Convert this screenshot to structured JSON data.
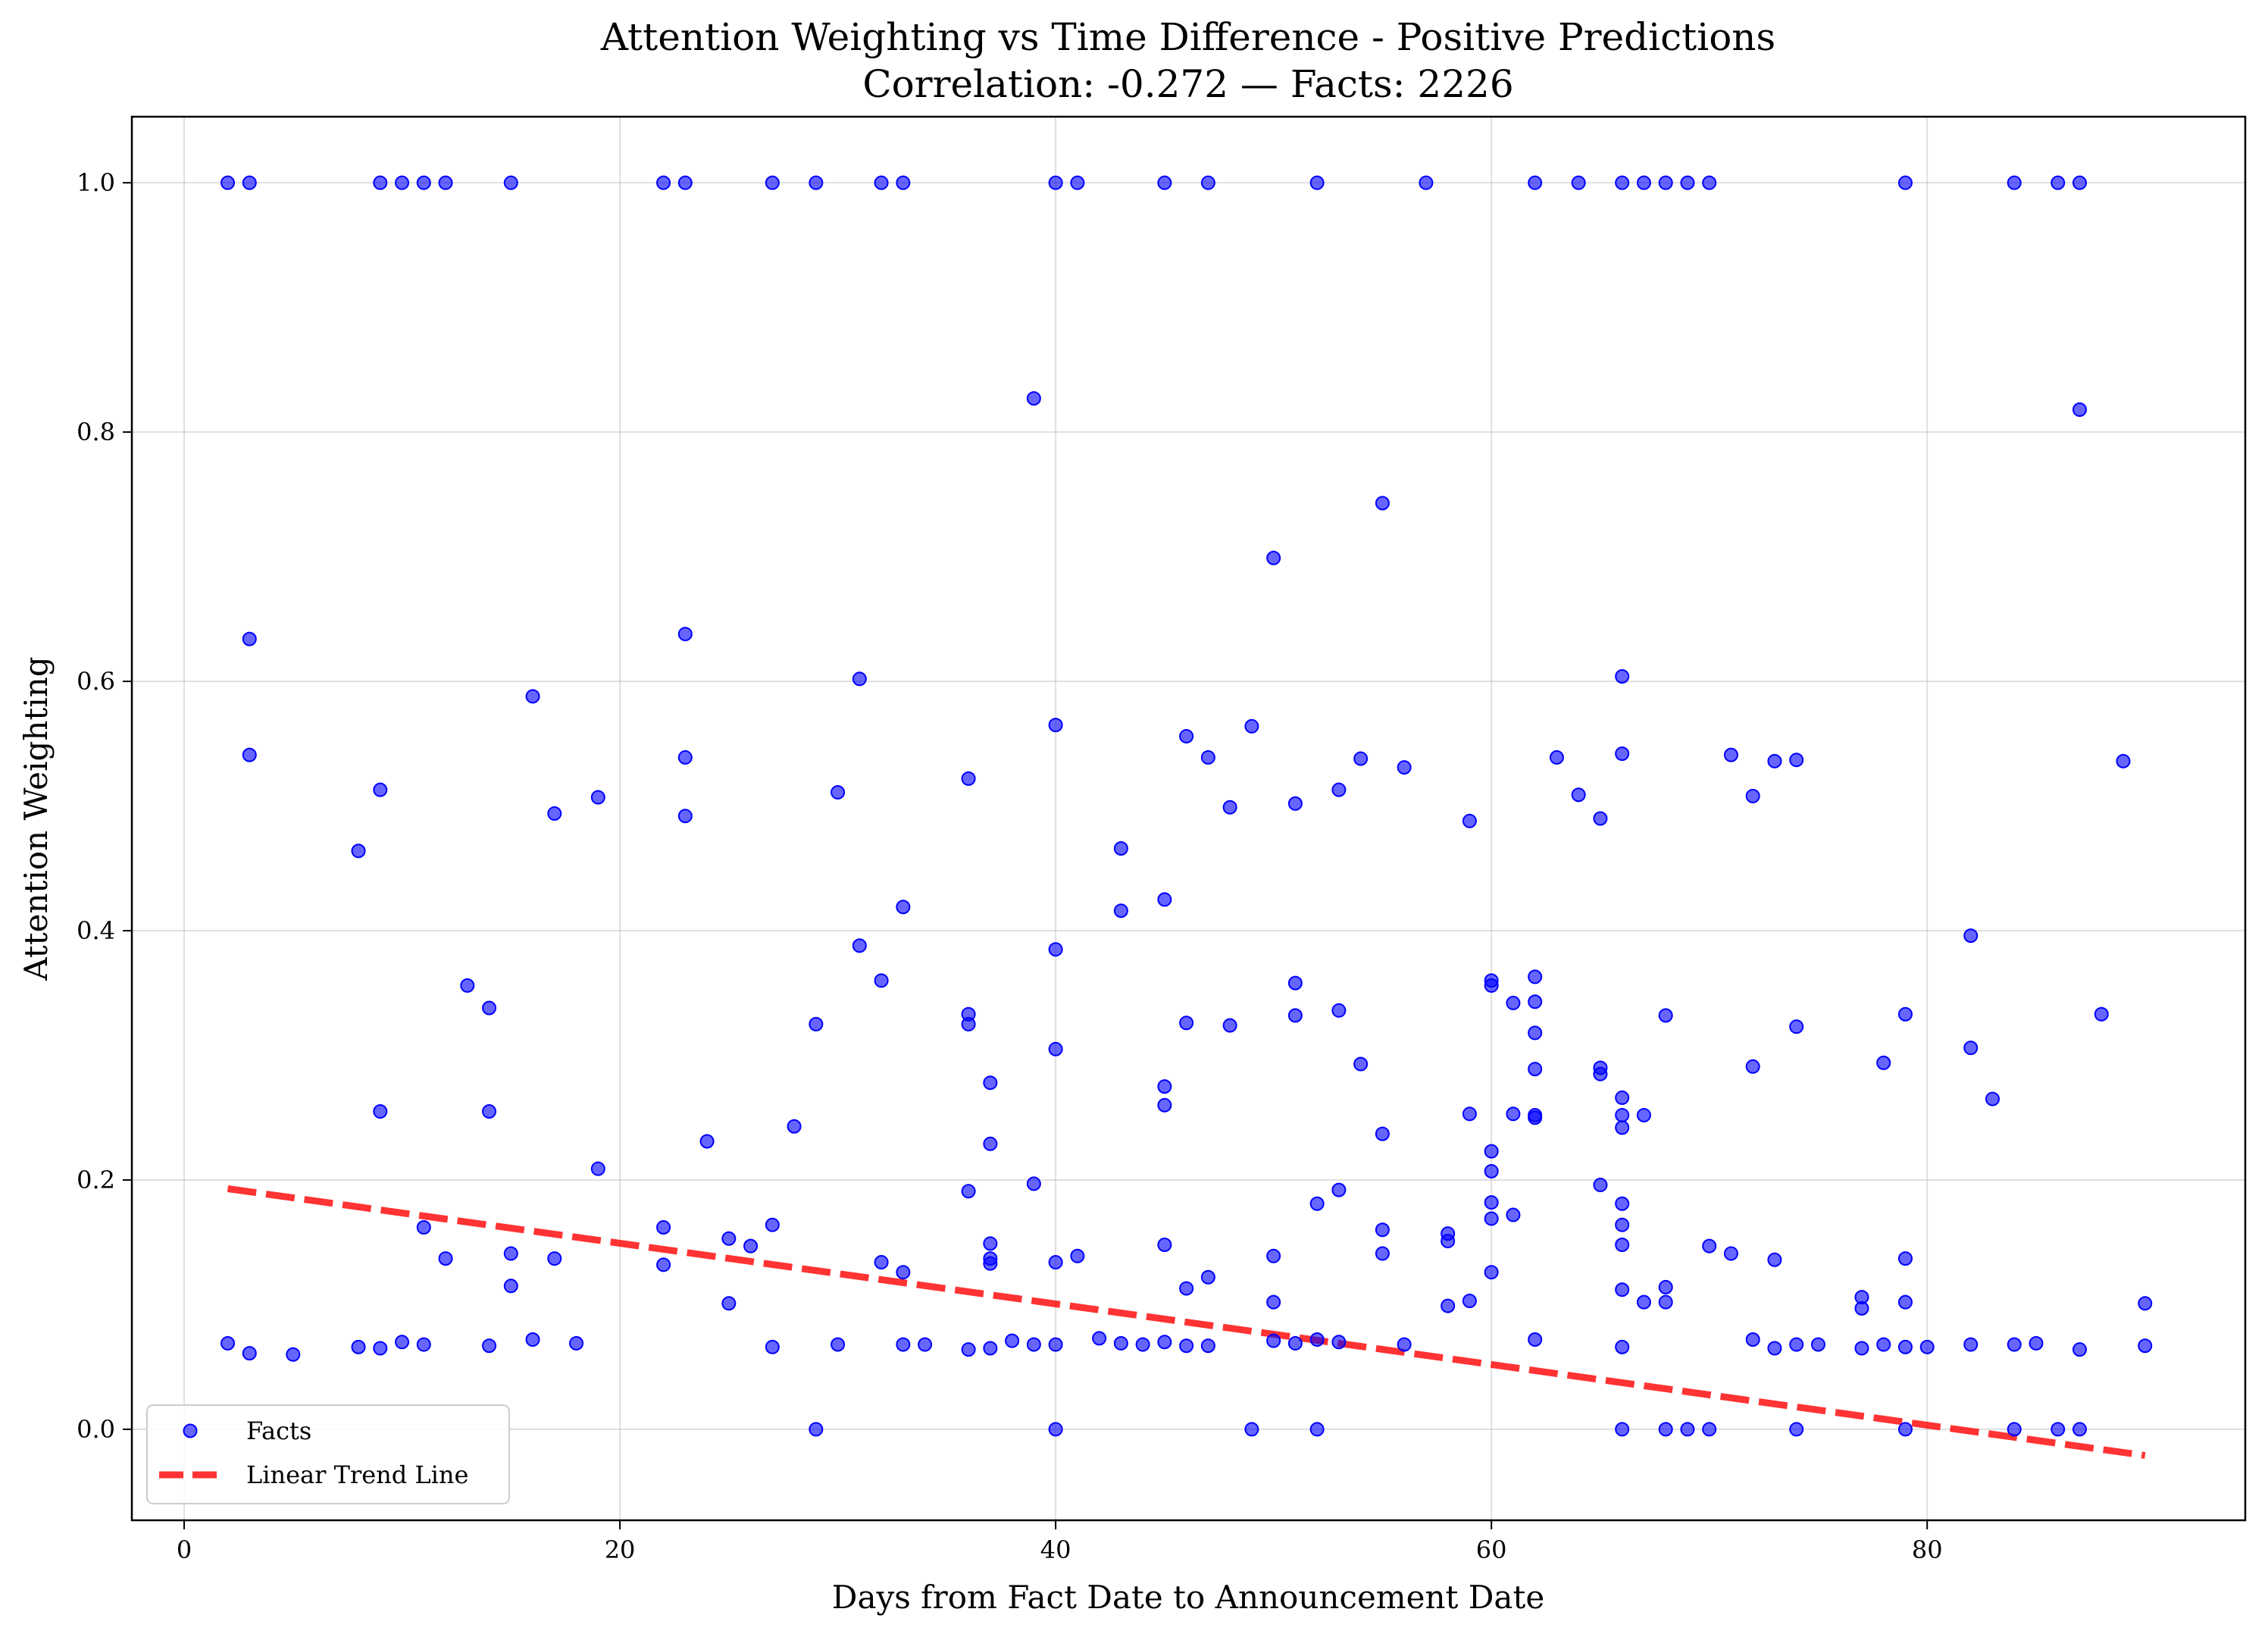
{
  "chart_data": {
    "type": "scatter",
    "title": "Attention Weighting vs Time Difference - Positive Predictions",
    "subtitle": "Correlation: -0.272 — Facts: 2226",
    "xlabel": "Days from Fact Date to Announcement Date",
    "ylabel": "Attention Weighting",
    "xlim": [
      -2.4,
      94.6
    ],
    "ylim": [
      -0.073,
      1.053
    ],
    "xticks": [
      0,
      20,
      40,
      60,
      80
    ],
    "yticks": [
      0.0,
      0.2,
      0.4,
      0.6,
      0.8,
      1.0
    ],
    "xtick_labels": [
      "0",
      "20",
      "40",
      "60",
      "80"
    ],
    "ytick_labels": [
      "0.0",
      "0.2",
      "0.4",
      "0.6",
      "0.8",
      "1.0"
    ],
    "grid": true,
    "legend_position": "lower-left",
    "series": [
      {
        "name": "Facts",
        "kind": "scatter",
        "color": "#0000ff",
        "points": [
          [
            2,
            1.0
          ],
          [
            3,
            1.0
          ],
          [
            9,
            1.0
          ],
          [
            10,
            1.0
          ],
          [
            11,
            1.0
          ],
          [
            12,
            1.0
          ],
          [
            15,
            1.0
          ],
          [
            22,
            1.0
          ],
          [
            23,
            1.0
          ],
          [
            27,
            1.0
          ],
          [
            29,
            1.0
          ],
          [
            32,
            1.0
          ],
          [
            33,
            1.0
          ],
          [
            40,
            1.0
          ],
          [
            41,
            1.0
          ],
          [
            45,
            1.0
          ],
          [
            47,
            1.0
          ],
          [
            52,
            1.0
          ],
          [
            57,
            1.0
          ],
          [
            62,
            1.0
          ],
          [
            64,
            1.0
          ],
          [
            66,
            1.0
          ],
          [
            67,
            1.0
          ],
          [
            68,
            1.0
          ],
          [
            69,
            1.0
          ],
          [
            70,
            1.0
          ],
          [
            79,
            1.0
          ],
          [
            84,
            1.0
          ],
          [
            86,
            1.0
          ],
          [
            87,
            1.0
          ],
          [
            39,
            0.827
          ],
          [
            87,
            0.818
          ],
          [
            55,
            0.743
          ],
          [
            50,
            0.699
          ],
          [
            3,
            0.634
          ],
          [
            23,
            0.638
          ],
          [
            31,
            0.602
          ],
          [
            66,
            0.604
          ],
          [
            16,
            0.588
          ],
          [
            3,
            0.541
          ],
          [
            23,
            0.539
          ],
          [
            40,
            0.565
          ],
          [
            46,
            0.556
          ],
          [
            47,
            0.539
          ],
          [
            49,
            0.564
          ],
          [
            54,
            0.538
          ],
          [
            56,
            0.531
          ],
          [
            63,
            0.539
          ],
          [
            66,
            0.542
          ],
          [
            71,
            0.541
          ],
          [
            73,
            0.536
          ],
          [
            74,
            0.537
          ],
          [
            89,
            0.536
          ],
          [
            36,
            0.522
          ],
          [
            9,
            0.513
          ],
          [
            17,
            0.494
          ],
          [
            19,
            0.507
          ],
          [
            23,
            0.492
          ],
          [
            30,
            0.511
          ],
          [
            48,
            0.499
          ],
          [
            51,
            0.502
          ],
          [
            53,
            0.513
          ],
          [
            59,
            0.488
          ],
          [
            64,
            0.509
          ],
          [
            65,
            0.49
          ],
          [
            72,
            0.508
          ],
          [
            8,
            0.464
          ],
          [
            43,
            0.466
          ],
          [
            33,
            0.419
          ],
          [
            43,
            0.416
          ],
          [
            45,
            0.425
          ],
          [
            82,
            0.396
          ],
          [
            31,
            0.388
          ],
          [
            40,
            0.385
          ],
          [
            60,
            0.36
          ],
          [
            60,
            0.356
          ],
          [
            62,
            0.363
          ],
          [
            32,
            0.36
          ],
          [
            51,
            0.358
          ],
          [
            13,
            0.356
          ],
          [
            14,
            0.338
          ],
          [
            36,
            0.333
          ],
          [
            36,
            0.325
          ],
          [
            51,
            0.332
          ],
          [
            53,
            0.336
          ],
          [
            61,
            0.342
          ],
          [
            62,
            0.343
          ],
          [
            68,
            0.332
          ],
          [
            79,
            0.333
          ],
          [
            88,
            0.333
          ],
          [
            29,
            0.325
          ],
          [
            46,
            0.326
          ],
          [
            48,
            0.324
          ],
          [
            74,
            0.323
          ],
          [
            62,
            0.318
          ],
          [
            40,
            0.305
          ],
          [
            82,
            0.306
          ],
          [
            54,
            0.293
          ],
          [
            62,
            0.289
          ],
          [
            65,
            0.29
          ],
          [
            65,
            0.285
          ],
          [
            72,
            0.291
          ],
          [
            78,
            0.294
          ],
          [
            37,
            0.278
          ],
          [
            45,
            0.275
          ],
          [
            66,
            0.266
          ],
          [
            83,
            0.265
          ],
          [
            9,
            0.255
          ],
          [
            14,
            0.255
          ],
          [
            45,
            0.26
          ],
          [
            59,
            0.253
          ],
          [
            61,
            0.253
          ],
          [
            62,
            0.252
          ],
          [
            62,
            0.25
          ],
          [
            66,
            0.252
          ],
          [
            67,
            0.252
          ],
          [
            66,
            0.242
          ],
          [
            28,
            0.243
          ],
          [
            55,
            0.237
          ],
          [
            24,
            0.231
          ],
          [
            37,
            0.229
          ],
          [
            60,
            0.223
          ],
          [
            19,
            0.209
          ],
          [
            60,
            0.207
          ],
          [
            39,
            0.197
          ],
          [
            65,
            0.196
          ],
          [
            36,
            0.191
          ],
          [
            53,
            0.192
          ],
          [
            60,
            0.182
          ],
          [
            52,
            0.181
          ],
          [
            66,
            0.181
          ],
          [
            61,
            0.172
          ],
          [
            60,
            0.169
          ],
          [
            27,
            0.164
          ],
          [
            66,
            0.164
          ],
          [
            11,
            0.162
          ],
          [
            22,
            0.162
          ],
          [
            55,
            0.16
          ],
          [
            58,
            0.157
          ],
          [
            58,
            0.151
          ],
          [
            25,
            0.153
          ],
          [
            26,
            0.147
          ],
          [
            37,
            0.149
          ],
          [
            45,
            0.148
          ],
          [
            66,
            0.148
          ],
          [
            70,
            0.147
          ],
          [
            15,
            0.141
          ],
          [
            41,
            0.139
          ],
          [
            50,
            0.139
          ],
          [
            55,
            0.141
          ],
          [
            71,
            0.141
          ],
          [
            12,
            0.137
          ],
          [
            17,
            0.137
          ],
          [
            37,
            0.137
          ],
          [
            37,
            0.133
          ],
          [
            32,
            0.134
          ],
          [
            40,
            0.134
          ],
          [
            73,
            0.136
          ],
          [
            79,
            0.137
          ],
          [
            22,
            0.132
          ],
          [
            33,
            0.126
          ],
          [
            60,
            0.126
          ],
          [
            47,
            0.122
          ],
          [
            15,
            0.115
          ],
          [
            46,
            0.113
          ],
          [
            66,
            0.112
          ],
          [
            68,
            0.114
          ],
          [
            77,
            0.106
          ],
          [
            77,
            0.097
          ],
          [
            59,
            0.103
          ],
          [
            67,
            0.102
          ],
          [
            68,
            0.102
          ],
          [
            79,
            0.102
          ],
          [
            25,
            0.101
          ],
          [
            50,
            0.102
          ],
          [
            58,
            0.099
          ],
          [
            90,
            0.101
          ],
          [
            2,
            0.069
          ],
          [
            3,
            0.061
          ],
          [
            5,
            0.06
          ],
          [
            8,
            0.066
          ],
          [
            9,
            0.065
          ],
          [
            10,
            0.07
          ],
          [
            11,
            0.068
          ],
          [
            14,
            0.067
          ],
          [
            16,
            0.072
          ],
          [
            18,
            0.069
          ],
          [
            27,
            0.066
          ],
          [
            30,
            0.068
          ],
          [
            33,
            0.068
          ],
          [
            34,
            0.068
          ],
          [
            36,
            0.064
          ],
          [
            37,
            0.065
          ],
          [
            38,
            0.071
          ],
          [
            39,
            0.068
          ],
          [
            40,
            0.068
          ],
          [
            42,
            0.073
          ],
          [
            43,
            0.069
          ],
          [
            44,
            0.068
          ],
          [
            45,
            0.07
          ],
          [
            46,
            0.067
          ],
          [
            47,
            0.067
          ],
          [
            50,
            0.071
          ],
          [
            51,
            0.069
          ],
          [
            52,
            0.072
          ],
          [
            53,
            0.07
          ],
          [
            56,
            0.068
          ],
          [
            62,
            0.072
          ],
          [
            66,
            0.066
          ],
          [
            72,
            0.072
          ],
          [
            73,
            0.065
          ],
          [
            74,
            0.068
          ],
          [
            75,
            0.068
          ],
          [
            77,
            0.065
          ],
          [
            78,
            0.068
          ],
          [
            79,
            0.066
          ],
          [
            80,
            0.066
          ],
          [
            82,
            0.068
          ],
          [
            84,
            0.068
          ],
          [
            85,
            0.069
          ],
          [
            87,
            0.064
          ],
          [
            90,
            0.067
          ],
          [
            29,
            0.0
          ],
          [
            40,
            0.0
          ],
          [
            49,
            0.0
          ],
          [
            52,
            0.0
          ],
          [
            66,
            0.0
          ],
          [
            68,
            0.0
          ],
          [
            69,
            0.0
          ],
          [
            70,
            0.0
          ],
          [
            74,
            0.0
          ],
          [
            79,
            0.0
          ],
          [
            84,
            0.0
          ],
          [
            86,
            0.0
          ],
          [
            87,
            0.0
          ]
        ]
      },
      {
        "name": "Linear Trend Line",
        "kind": "line",
        "color": "#ff0000",
        "x": [
          2,
          90
        ],
        "y": [
          0.193,
          -0.021
        ]
      }
    ]
  }
}
